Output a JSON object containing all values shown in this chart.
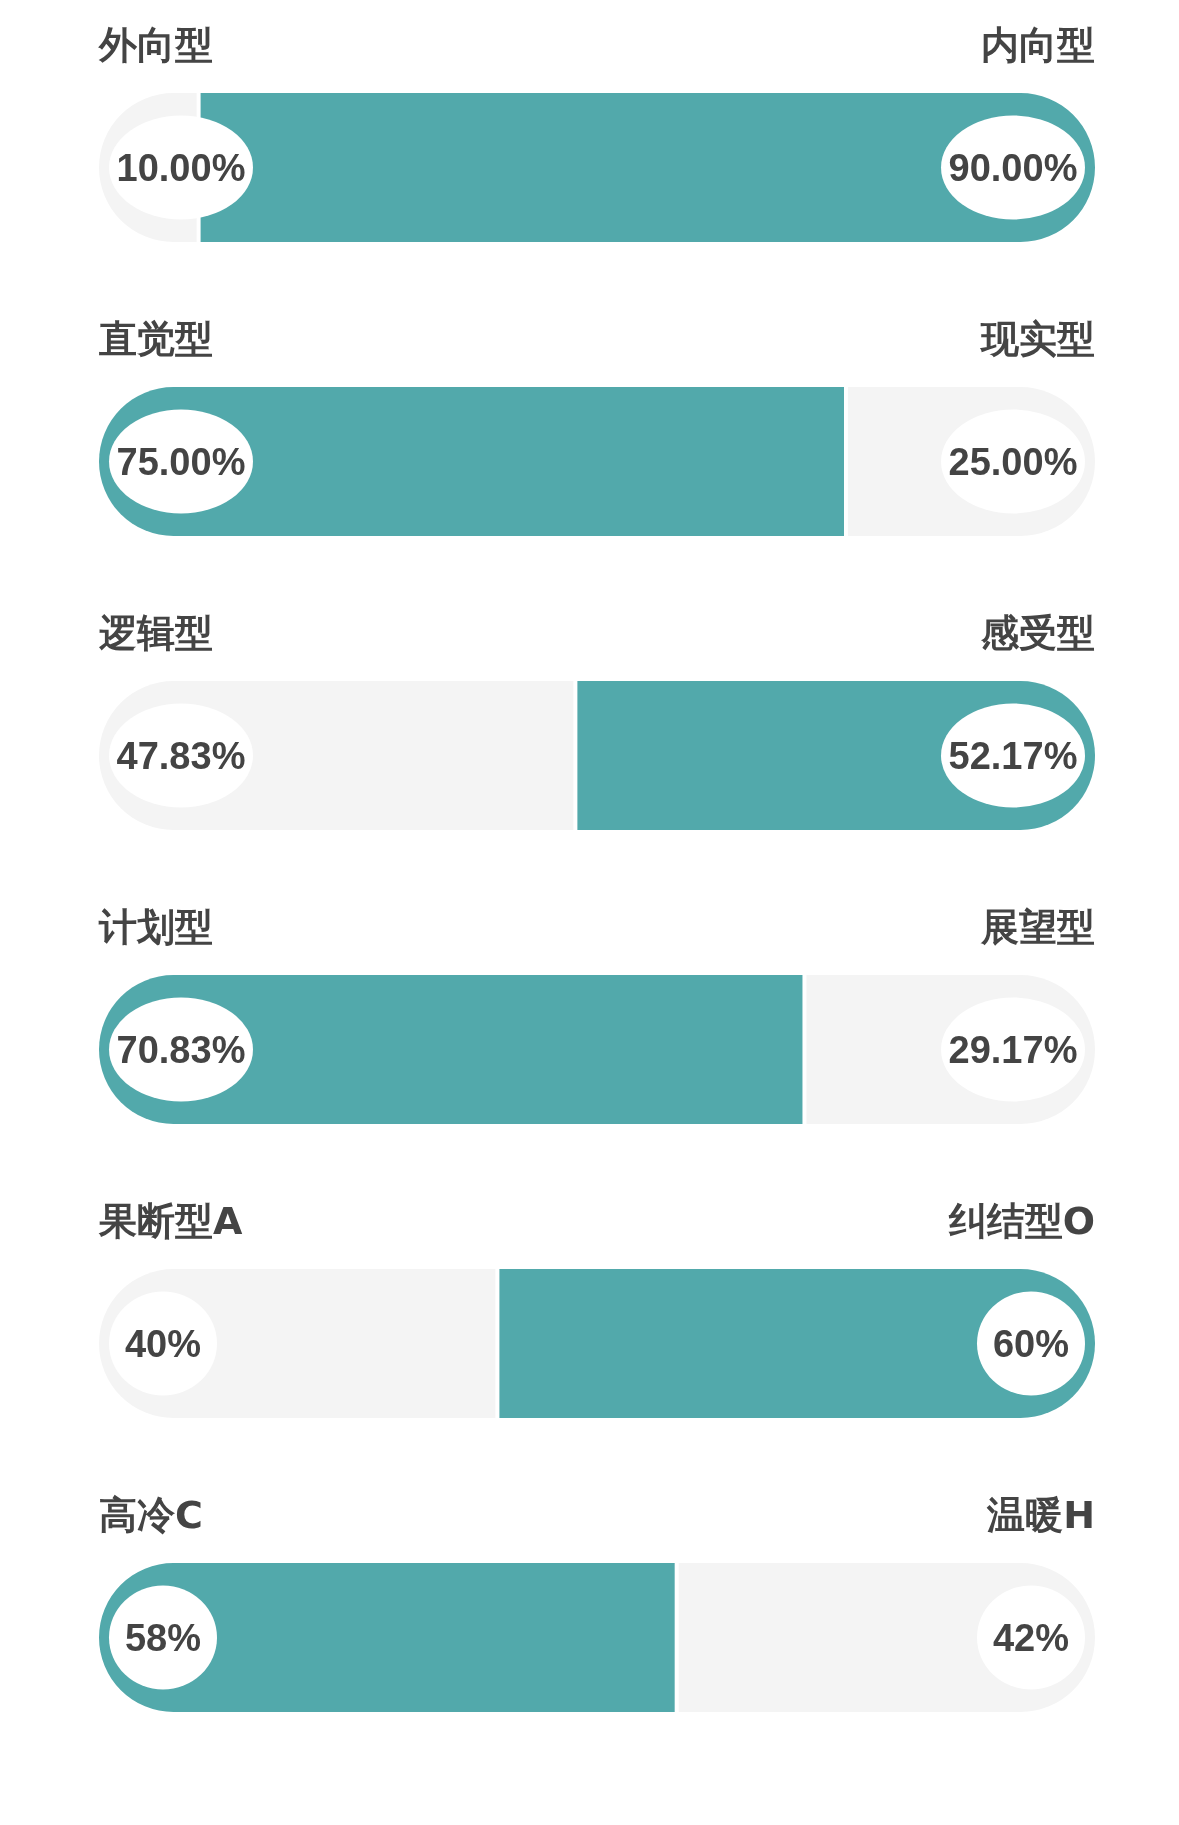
{
  "chart_data": [
    {
      "type": "bar",
      "orientation": "horizontal",
      "stacked": true,
      "categories": [
        null
      ],
      "legend": false,
      "data_labels": true,
      "series": [
        {
          "name": "外向型",
          "color": "#f4f4f4",
          "values": [
            10
          ],
          "value_labels": [
            "10.00%"
          ]
        },
        {
          "name": "内向型",
          "color": "#52a9ab",
          "values": [
            90
          ],
          "value_labels": [
            "90.00%"
          ]
        }
      ]
    },
    {
      "type": "bar",
      "orientation": "horizontal",
      "stacked": true,
      "categories": [
        null
      ],
      "legend": false,
      "data_labels": true,
      "series": [
        {
          "name": "直觉型",
          "color": "#52a9ab",
          "values": [
            75
          ],
          "value_labels": [
            "75.00%"
          ]
        },
        {
          "name": "现实型",
          "color": "#f4f4f4",
          "values": [
            25
          ],
          "value_labels": [
            "25.00%"
          ]
        }
      ]
    },
    {
      "type": "bar",
      "orientation": "horizontal",
      "stacked": true,
      "categories": [
        null
      ],
      "legend": false,
      "data_labels": true,
      "series": [
        {
          "name": "逻辑型",
          "color": "#f4f4f4",
          "values": [
            47.83
          ],
          "value_labels": [
            "47.83%"
          ]
        },
        {
          "name": "感受型",
          "color": "#52a9ab",
          "values": [
            52.17
          ],
          "value_labels": [
            "52.17%"
          ]
        }
      ]
    },
    {
      "type": "bar",
      "orientation": "horizontal",
      "stacked": true,
      "categories": [
        null
      ],
      "legend": false,
      "data_labels": true,
      "series": [
        {
          "name": "计划型",
          "color": "#52a9ab",
          "values": [
            70.83
          ],
          "value_labels": [
            "70.83%"
          ]
        },
        {
          "name": "展望型",
          "color": "#f4f4f4",
          "values": [
            29.17
          ],
          "value_labels": [
            "29.17%"
          ]
        }
      ]
    },
    {
      "type": "bar",
      "orientation": "horizontal",
      "stacked": true,
      "categories": [
        null
      ],
      "legend": false,
      "data_labels": true,
      "series": [
        {
          "name": "果断型A",
          "color": "#f4f4f4",
          "values": [
            40
          ],
          "value_labels": [
            "40%"
          ]
        },
        {
          "name": "纠结型O",
          "color": "#52a9ab",
          "values": [
            60
          ],
          "value_labels": [
            "60%"
          ]
        }
      ]
    },
    {
      "type": "bar",
      "orientation": "horizontal",
      "stacked": true,
      "categories": [
        null
      ],
      "legend": false,
      "data_labels": true,
      "series": [
        {
          "name": "高冷C",
          "color": "#52a9ab",
          "values": [
            58
          ],
          "value_labels": [
            "58%"
          ]
        },
        {
          "name": "温暖H",
          "color": "#f4f4f4",
          "values": [
            42
          ],
          "value_labels": [
            "42%"
          ]
        }
      ]
    }
  ]
}
